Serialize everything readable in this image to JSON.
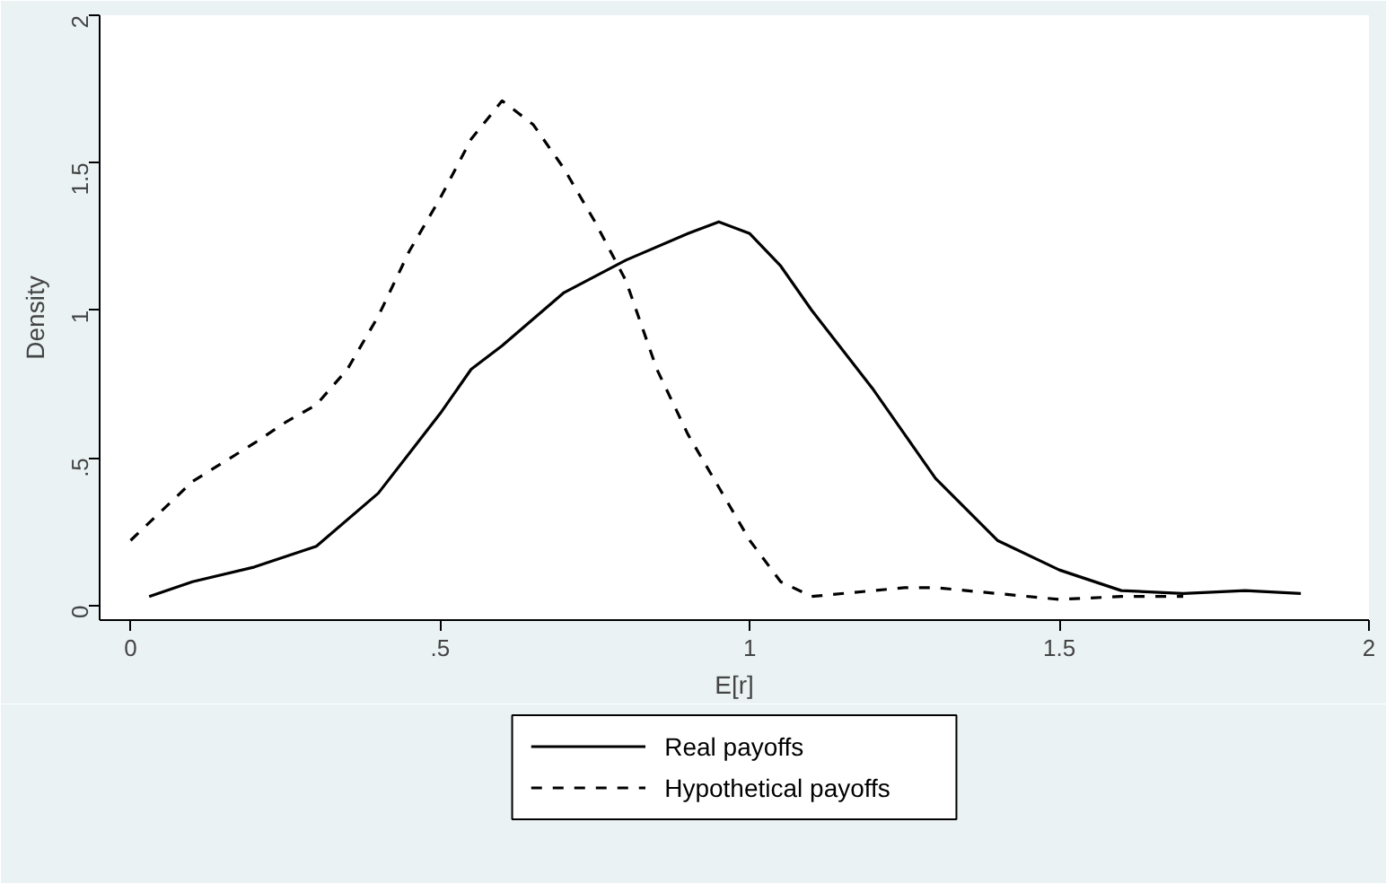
{
  "chart_data": {
    "type": "line",
    "xlabel": "E[r]",
    "ylabel": "Density",
    "xlim": [
      -0.05,
      2.0
    ],
    "ylim": [
      -0.05,
      2.0
    ],
    "xticks": [
      0,
      {
        "value": 0.5,
        "label": ".5"
      },
      1,
      1.5,
      2
    ],
    "yticks": [
      0,
      {
        "value": 0.5,
        "label": ".5"
      },
      1,
      1.5,
      2
    ],
    "legend": "bottom",
    "marker": "none",
    "series": [
      {
        "name": "Real payoffs",
        "color": "#000000",
        "line_style": "solid",
        "x": [
          0.03,
          0.1,
          0.2,
          0.3,
          0.4,
          0.5,
          0.55,
          0.6,
          0.7,
          0.8,
          0.9,
          0.95,
          1.0,
          1.05,
          1.1,
          1.2,
          1.25,
          1.3,
          1.4,
          1.5,
          1.6,
          1.7,
          1.8,
          1.89
        ],
        "values": [
          0.03,
          0.08,
          0.13,
          0.2,
          0.38,
          0.65,
          0.8,
          0.88,
          1.06,
          1.17,
          1.26,
          1.3,
          1.26,
          1.15,
          1.0,
          0.73,
          0.58,
          0.43,
          0.22,
          0.12,
          0.05,
          0.04,
          0.05,
          0.04
        ]
      },
      {
        "name": "Hypothetical payoffs",
        "color": "#000000",
        "line_style": "dashed",
        "x": [
          0,
          0.05,
          0.1,
          0.2,
          0.25,
          0.3,
          0.35,
          0.4,
          0.45,
          0.5,
          0.55,
          0.6,
          0.65,
          0.7,
          0.75,
          0.8,
          0.85,
          0.9,
          0.95,
          1.0,
          1.05,
          1.1,
          1.2,
          1.25,
          1.3,
          1.4,
          1.5,
          1.6,
          1.7
        ],
        "values": [
          0.22,
          0.32,
          0.42,
          0.55,
          0.62,
          0.68,
          0.8,
          0.98,
          1.2,
          1.38,
          1.58,
          1.71,
          1.63,
          1.48,
          1.3,
          1.1,
          0.8,
          0.58,
          0.4,
          0.22,
          0.08,
          0.03,
          0.05,
          0.06,
          0.06,
          0.04,
          0.02,
          0.03,
          0.03
        ]
      }
    ]
  }
}
